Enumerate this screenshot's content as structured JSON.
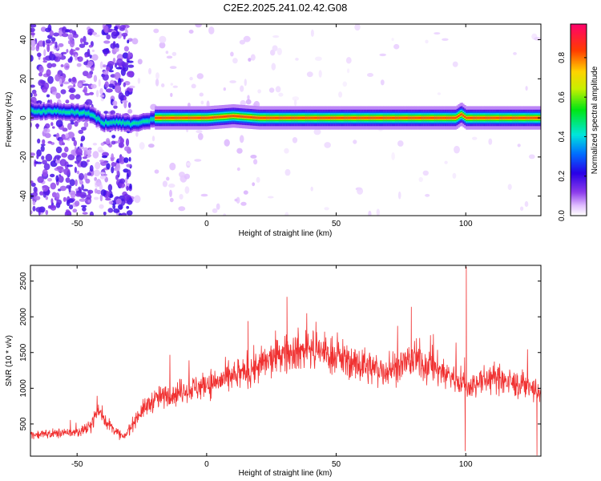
{
  "title": "C2E2.2025.241.02.42.G08",
  "chart_data": [
    {
      "type": "heatmap",
      "xlabel": "Height of straight line (km)",
      "ylabel": "Frequency (Hz)",
      "xlim": [
        -68,
        129
      ],
      "ylim": [
        -50,
        48
      ],
      "xticks": [
        -50,
        0,
        50,
        100
      ],
      "yticks": [
        -40,
        -20,
        0,
        20,
        40
      ],
      "colorbar": {
        "label": "Normalized spectral amplitude",
        "range": [
          0,
          0.97
        ],
        "ticks": [
          0.0,
          0.2,
          0.4,
          0.6,
          0.8
        ]
      },
      "ridge": {
        "description_points": [
          {
            "x": -68,
            "y": 3.5
          },
          {
            "x": -50,
            "y": 3
          },
          {
            "x": -45,
            "y": 2
          },
          {
            "x": -40,
            "y": -3
          },
          {
            "x": -35,
            "y": -2
          },
          {
            "x": -30,
            "y": -3
          },
          {
            "x": -25,
            "y": -2
          },
          {
            "x": -20,
            "y": 0
          },
          {
            "x": 0,
            "y": 0
          },
          {
            "x": 10,
            "y": 1
          },
          {
            "x": 20,
            "y": 0
          },
          {
            "x": 96,
            "y": 0
          },
          {
            "x": 98,
            "y": 2
          },
          {
            "x": 100,
            "y": 0
          },
          {
            "x": 129,
            "y": 0
          }
        ]
      }
    },
    {
      "type": "line",
      "xlabel": "Height of straight line (km)",
      "ylabel": "SNR (10 * v/v)",
      "xlim": [
        -68,
        129
      ],
      "ylim": [
        50,
        2720
      ],
      "xticks": [
        -50,
        0,
        50,
        100
      ],
      "yticks": [
        500,
        1000,
        1500,
        2000,
        2500
      ],
      "color": "#f03030",
      "trend": [
        {
          "x": -68,
          "y": 350
        },
        {
          "x": -50,
          "y": 380
        },
        {
          "x": -45,
          "y": 450
        },
        {
          "x": -42,
          "y": 700
        },
        {
          "x": -38,
          "y": 500
        },
        {
          "x": -32,
          "y": 300
        },
        {
          "x": -26,
          "y": 650
        },
        {
          "x": -20,
          "y": 850
        },
        {
          "x": -10,
          "y": 950
        },
        {
          "x": 0,
          "y": 1050
        },
        {
          "x": 10,
          "y": 1150
        },
        {
          "x": 20,
          "y": 1300
        },
        {
          "x": 30,
          "y": 1500
        },
        {
          "x": 40,
          "y": 1550
        },
        {
          "x": 50,
          "y": 1450
        },
        {
          "x": 60,
          "y": 1300
        },
        {
          "x": 70,
          "y": 1250
        },
        {
          "x": 80,
          "y": 1400
        },
        {
          "x": 90,
          "y": 1250
        },
        {
          "x": 98,
          "y": 1100
        },
        {
          "x": 100,
          "y": 1000
        },
        {
          "x": 110,
          "y": 1150
        },
        {
          "x": 120,
          "y": 1050
        },
        {
          "x": 129,
          "y": 950
        }
      ],
      "spikes": [
        {
          "x": 100.2,
          "y": 2700
        },
        {
          "x": 99.8,
          "y": 120
        },
        {
          "x": 127.5,
          "y": 60
        },
        {
          "x": 31,
          "y": 2280
        },
        {
          "x": 79,
          "y": 2140
        },
        {
          "x": 16,
          "y": 1940
        }
      ]
    }
  ]
}
